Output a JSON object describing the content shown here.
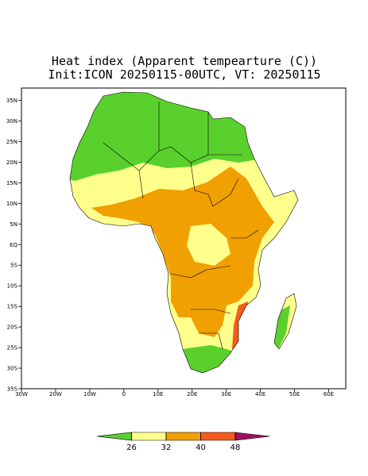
{
  "title": "Heat index (Apparent tempearture (C))",
  "subtitle": "Init:ICON 20250115-00UTC, VT: 20250115",
  "map": {
    "xlim": [
      -30,
      65
    ],
    "ylim": [
      -35,
      38
    ],
    "lat_ticks": [
      {
        "value": 35,
        "label": "35N"
      },
      {
        "value": 30,
        "label": "30N"
      },
      {
        "value": 25,
        "label": "25N"
      },
      {
        "value": 20,
        "label": "20N"
      },
      {
        "value": 15,
        "label": "15N"
      },
      {
        "value": 10,
        "label": "10N"
      },
      {
        "value": 5,
        "label": "5N"
      },
      {
        "value": 0,
        "label": "EQ"
      },
      {
        "value": -5,
        "label": "5S"
      },
      {
        "value": -10,
        "label": "10S"
      },
      {
        "value": -15,
        "label": "15S"
      },
      {
        "value": -20,
        "label": "20S"
      },
      {
        "value": -25,
        "label": "25S"
      },
      {
        "value": -30,
        "label": "30S"
      },
      {
        "value": -35,
        "label": "35S"
      }
    ],
    "lon_ticks": [
      {
        "value": -30,
        "label": "30W"
      },
      {
        "value": -20,
        "label": "20W"
      },
      {
        "value": -10,
        "label": "10W"
      },
      0,
      {
        "value": 10,
        "label": "10E"
      },
      {
        "value": 20,
        "label": "20E"
      },
      {
        "value": 30,
        "label": "30E"
      },
      {
        "value": 40,
        "label": "40E"
      },
      {
        "value": 50,
        "label": "50E"
      },
      {
        "value": 60,
        "label": "60E"
      }
    ]
  },
  "colorbar": {
    "levels": [
      26,
      32,
      40,
      48
    ],
    "colors": [
      "#5ad02d",
      "#ffff8c",
      "#f0a000",
      "#f55a1e",
      "#a01060"
    ]
  }
}
